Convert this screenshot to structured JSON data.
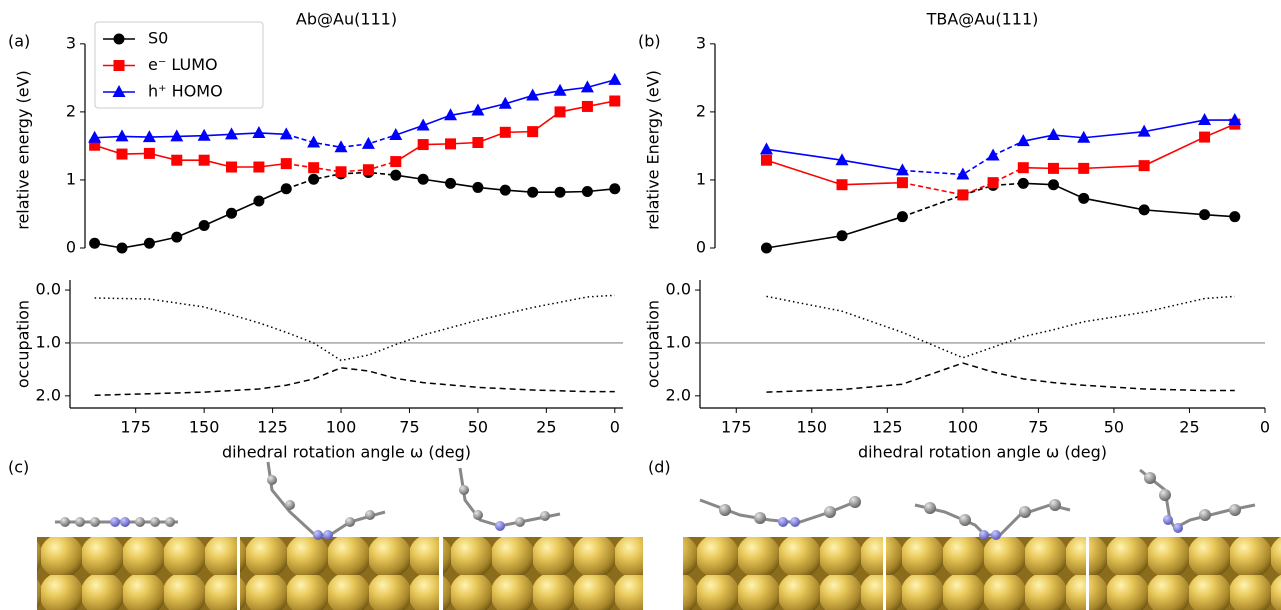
{
  "chart_data": [
    {
      "type": "line",
      "panel_label": "(a)",
      "title": "Ab@Au(111)",
      "ylabel": "relative energy (eV)",
      "x": [
        190,
        180,
        170,
        160,
        150,
        140,
        130,
        120,
        110,
        100,
        90,
        80,
        70,
        60,
        50,
        40,
        30,
        20,
        10,
        0
      ],
      "xlim": [
        199,
        -3
      ],
      "ylim": [
        -0.25,
        3.13
      ],
      "yticks": [
        0,
        1,
        2,
        3
      ],
      "legend": "upper left",
      "dashed_between": [
        120,
        80
      ],
      "series": [
        {
          "name": "S0",
          "color": "#000000",
          "marker": "circle",
          "values": [
            0.07,
            0.0,
            0.07,
            0.16,
            0.33,
            0.51,
            0.69,
            0.87,
            1.01,
            1.09,
            1.11,
            1.07,
            1.01,
            0.95,
            0.89,
            0.85,
            0.82,
            0.82,
            0.83,
            0.87
          ]
        },
        {
          "name": "e⁻ LUMO",
          "color": "#ff0000",
          "marker": "square",
          "values": [
            1.51,
            1.38,
            1.39,
            1.29,
            1.29,
            1.19,
            1.19,
            1.24,
            1.18,
            1.12,
            1.15,
            1.27,
            1.52,
            1.53,
            1.55,
            1.7,
            1.71,
            2.0,
            2.08,
            2.16
          ]
        },
        {
          "name": "h⁺ HOMO",
          "color": "#0000ff",
          "marker": "triangle",
          "values": [
            1.62,
            1.64,
            1.63,
            1.64,
            1.65,
            1.67,
            1.69,
            1.67,
            1.55,
            1.48,
            1.53,
            1.66,
            1.8,
            1.95,
            2.02,
            2.12,
            2.24,
            2.31,
            2.36,
            2.47
          ]
        }
      ]
    },
    {
      "type": "line",
      "ylabel": "occupation",
      "xlabel": "dihedral rotation angle ω (deg)",
      "x": [
        190,
        170,
        150,
        130,
        120,
        110,
        100,
        90,
        80,
        70,
        50,
        30,
        10,
        0
      ],
      "xlim": [
        199,
        -3
      ],
      "xticks": [
        175,
        150,
        125,
        100,
        75,
        50,
        25,
        0
      ],
      "ylim": [
        2.23,
        -0.19
      ],
      "yticks": [
        {
          "value": 0,
          "label": "0.0"
        },
        {
          "value": 1,
          "label": "1.0"
        },
        {
          "value": 2,
          "label": "2.0"
        }
      ],
      "hline": 1,
      "series": [
        {
          "color": "#000000",
          "linestyle": "dotted",
          "values": [
            0.15,
            0.17,
            0.32,
            0.62,
            0.8,
            1.0,
            1.33,
            1.23,
            1.03,
            0.85,
            0.57,
            0.33,
            0.13,
            0.1
          ]
        },
        {
          "color": "#000000",
          "linestyle": "dashed",
          "values": [
            1.99,
            1.96,
            1.93,
            1.87,
            1.8,
            1.68,
            1.47,
            1.53,
            1.67,
            1.75,
            1.84,
            1.89,
            1.92,
            1.92
          ]
        }
      ]
    },
    {
      "type": "line",
      "panel_label": "(b)",
      "title": "TBA@Au(111)",
      "ylabel": "relative Energy (eV)",
      "x": [
        165,
        140,
        120,
        100,
        90,
        80,
        70,
        60,
        40,
        20,
        10
      ],
      "xlim": [
        187,
        0
      ],
      "ylim": [
        -0.25,
        3.13
      ],
      "yticks": [
        0,
        1,
        2,
        3
      ],
      "dashed_between": [
        120,
        80
      ],
      "series": [
        {
          "color": "#000000",
          "marker": "circle",
          "values": [
            0.0,
            0.18,
            0.46,
            0.78,
            0.92,
            0.95,
            0.93,
            0.73,
            0.56,
            0.49,
            0.46
          ]
        },
        {
          "color": "#ff0000",
          "marker": "square",
          "values": [
            1.29,
            0.93,
            0.96,
            0.78,
            0.96,
            1.18,
            1.17,
            1.17,
            1.21,
            1.63,
            1.82
          ]
        },
        {
          "color": "#0000ff",
          "marker": "triangle",
          "values": [
            1.45,
            1.29,
            1.14,
            1.08,
            1.36,
            1.57,
            1.66,
            1.62,
            1.71,
            1.88,
            1.88
          ]
        }
      ]
    },
    {
      "type": "line",
      "ylabel": "occupation",
      "xlabel": "dihedral rotation angle ω (deg)",
      "x": [
        165,
        140,
        120,
        100,
        90,
        80,
        70,
        60,
        40,
        20,
        10
      ],
      "xlim": [
        187,
        0
      ],
      "xticks": [
        175,
        150,
        125,
        100,
        75,
        50,
        25,
        0
      ],
      "ylim": [
        2.23,
        -0.19
      ],
      "yticks": [
        {
          "value": 0,
          "label": "0.0"
        },
        {
          "value": 1,
          "label": "1.0"
        },
        {
          "value": 2,
          "label": "2.0"
        }
      ],
      "hline": 1,
      "series": [
        {
          "color": "#000000",
          "linestyle": "dotted",
          "values": [
            0.12,
            0.4,
            0.8,
            1.28,
            1.08,
            0.88,
            0.75,
            0.6,
            0.42,
            0.16,
            0.12
          ]
        },
        {
          "color": "#000000",
          "linestyle": "dashed",
          "values": [
            1.93,
            1.88,
            1.78,
            1.38,
            1.55,
            1.68,
            1.75,
            1.8,
            1.87,
            1.9,
            1.9
          ]
        }
      ]
    }
  ],
  "image_panels": {
    "c": "(c)",
    "d": "(d)"
  }
}
